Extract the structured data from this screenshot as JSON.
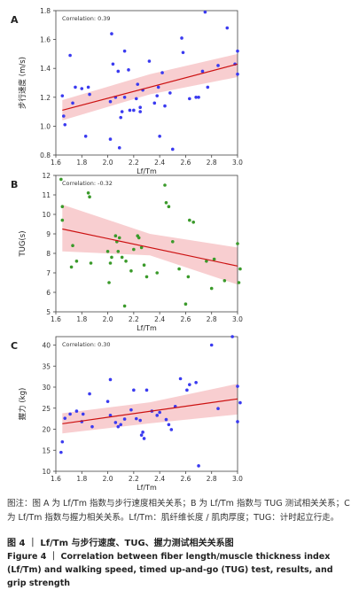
{
  "chart_data": [
    {
      "type": "scatter",
      "panel_label": "A",
      "annotation": "Correlation: 0.39",
      "xlabel": "Lf/Tm",
      "ylabel": "步行速度 (m/s)",
      "xlim": [
        1.6,
        3.0
      ],
      "ylim": [
        0.8,
        1.8
      ],
      "xticks": [
        "1.6",
        "1.8",
        "2.0",
        "2.2",
        "2.4",
        "2.6",
        "2.8",
        "3.0"
      ],
      "yticks": [
        "0.8",
        "1.0",
        "1.2",
        "1.4",
        "1.6",
        "1.8"
      ],
      "point_color": "#3a3af0",
      "regression": {
        "x": [
          1.65,
          3.0
        ],
        "y": [
          1.11,
          1.43
        ]
      },
      "band": {
        "upper": [
          1.18,
          1.36,
          1.5
        ],
        "lower": [
          1.04,
          1.22,
          1.34
        ]
      },
      "points": [
        [
          1.65,
          1.21
        ],
        [
          1.66,
          1.07
        ],
        [
          1.67,
          1.01
        ],
        [
          1.71,
          1.49
        ],
        [
          1.73,
          1.16
        ],
        [
          1.75,
          1.27
        ],
        [
          1.8,
          1.26
        ],
        [
          1.83,
          0.93
        ],
        [
          1.85,
          1.27
        ],
        [
          1.86,
          1.22
        ],
        [
          2.02,
          0.91
        ],
        [
          2.02,
          1.17
        ],
        [
          2.03,
          1.64
        ],
        [
          2.04,
          1.43
        ],
        [
          2.06,
          1.2
        ],
        [
          2.08,
          1.38
        ],
        [
          2.09,
          0.85
        ],
        [
          2.1,
          1.06
        ],
        [
          2.11,
          1.1
        ],
        [
          2.13,
          1.2
        ],
        [
          2.13,
          1.52
        ],
        [
          2.16,
          1.39
        ],
        [
          2.17,
          1.11
        ],
        [
          2.2,
          1.11
        ],
        [
          2.22,
          1.19
        ],
        [
          2.23,
          1.29
        ],
        [
          2.25,
          1.1
        ],
        [
          2.25,
          1.13
        ],
        [
          2.27,
          1.25
        ],
        [
          2.32,
          1.45
        ],
        [
          2.36,
          1.16
        ],
        [
          2.38,
          1.21
        ],
        [
          2.39,
          1.27
        ],
        [
          2.4,
          0.93
        ],
        [
          2.42,
          1.37
        ],
        [
          2.44,
          1.14
        ],
        [
          2.48,
          1.23
        ],
        [
          2.5,
          0.84
        ],
        [
          2.57,
          1.61
        ],
        [
          2.58,
          1.51
        ],
        [
          2.63,
          1.19
        ],
        [
          2.68,
          1.2
        ],
        [
          2.7,
          1.2
        ],
        [
          2.73,
          1.38
        ],
        [
          2.75,
          1.79
        ],
        [
          2.77,
          1.27
        ],
        [
          2.85,
          1.42
        ],
        [
          2.92,
          1.68
        ],
        [
          2.98,
          1.43
        ],
        [
          3.0,
          1.52
        ],
        [
          3.0,
          1.36
        ]
      ]
    },
    {
      "type": "scatter",
      "panel_label": "B",
      "annotation": "Correlation: -0.32",
      "xlabel": "Lf/Tm",
      "ylabel": "TUG(s)",
      "xlim": [
        1.6,
        3.0
      ],
      "ylim": [
        5,
        12
      ],
      "xticks": [
        "1.6",
        "1.8",
        "2.0",
        "2.2",
        "2.4",
        "2.6",
        "2.8",
        "3.0"
      ],
      "yticks": [
        "5",
        "6",
        "7",
        "8",
        "9",
        "10",
        "11",
        "12"
      ],
      "point_color": "#3a9a2a",
      "regression": {
        "x": [
          1.65,
          3.0
        ],
        "y": [
          9.25,
          7.35
        ]
      },
      "band": {
        "upper": [
          10.5,
          9.0,
          8.3
        ],
        "lower": [
          8.1,
          7.9,
          6.4
        ]
      },
      "points": [
        [
          1.64,
          11.8
        ],
        [
          1.65,
          10.4
        ],
        [
          1.65,
          9.7
        ],
        [
          1.72,
          7.3
        ],
        [
          1.73,
          8.4
        ],
        [
          1.76,
          7.6
        ],
        [
          1.85,
          11.1
        ],
        [
          1.86,
          10.9
        ],
        [
          1.87,
          7.5
        ],
        [
          2.0,
          8.1
        ],
        [
          2.01,
          6.5
        ],
        [
          2.02,
          7.5
        ],
        [
          2.03,
          7.8
        ],
        [
          2.06,
          8.9
        ],
        [
          2.07,
          8.6
        ],
        [
          2.08,
          8.1
        ],
        [
          2.09,
          8.8
        ],
        [
          2.11,
          7.8
        ],
        [
          2.13,
          5.3
        ],
        [
          2.14,
          7.6
        ],
        [
          2.18,
          7.1
        ],
        [
          2.2,
          8.2
        ],
        [
          2.23,
          8.9
        ],
        [
          2.24,
          8.8
        ],
        [
          2.26,
          8.3
        ],
        [
          2.28,
          7.4
        ],
        [
          2.3,
          6.8
        ],
        [
          2.38,
          7.0
        ],
        [
          2.44,
          11.5
        ],
        [
          2.45,
          10.6
        ],
        [
          2.47,
          10.4
        ],
        [
          2.5,
          8.6
        ],
        [
          2.55,
          7.2
        ],
        [
          2.6,
          5.4
        ],
        [
          2.62,
          6.8
        ],
        [
          2.63,
          9.7
        ],
        [
          2.66,
          9.6
        ],
        [
          2.76,
          7.6
        ],
        [
          2.8,
          6.2
        ],
        [
          2.82,
          7.7
        ],
        [
          2.9,
          6.6
        ],
        [
          3.0,
          8.5
        ],
        [
          3.01,
          6.5
        ],
        [
          3.02,
          7.2
        ]
      ]
    },
    {
      "type": "scatter",
      "panel_label": "C",
      "annotation": "Correlation: 0.30",
      "xlabel": "Lf/Tm",
      "ylabel": "握力 (kg)",
      "xlim": [
        1.6,
        3.0
      ],
      "ylim": [
        10,
        42
      ],
      "xticks": [
        "1.6",
        "1.8",
        "2.0",
        "2.2",
        "2.4",
        "2.6",
        "2.8",
        "3.0"
      ],
      "yticks": [
        "10",
        "15",
        "20",
        "25",
        "30",
        "35",
        "40"
      ],
      "point_color": "#3a3af0",
      "regression": {
        "x": [
          1.65,
          3.0
        ],
        "y": [
          21.3,
          27.2
        ]
      },
      "band": {
        "upper": [
          23.8,
          26.4,
          30.8
        ],
        "lower": [
          19.0,
          21.4,
          23.5
        ]
      },
      "points": [
        [
          1.64,
          14.5
        ],
        [
          1.65,
          17.0
        ],
        [
          1.67,
          22.6
        ],
        [
          1.71,
          23.6
        ],
        [
          1.76,
          24.3
        ],
        [
          1.8,
          21.8
        ],
        [
          1.81,
          23.6
        ],
        [
          1.86,
          28.4
        ],
        [
          1.88,
          20.6
        ],
        [
          2.0,
          26.6
        ],
        [
          2.02,
          31.8
        ],
        [
          2.02,
          23.3
        ],
        [
          2.06,
          21.6
        ],
        [
          2.08,
          20.6
        ],
        [
          2.1,
          21.1
        ],
        [
          2.13,
          22.4
        ],
        [
          2.18,
          24.6
        ],
        [
          2.2,
          29.3
        ],
        [
          2.22,
          22.5
        ],
        [
          2.25,
          22.1
        ],
        [
          2.26,
          18.6
        ],
        [
          2.27,
          19.3
        ],
        [
          2.28,
          17.8
        ],
        [
          2.3,
          29.3
        ],
        [
          2.34,
          24.3
        ],
        [
          2.38,
          23.3
        ],
        [
          2.4,
          24.0
        ],
        [
          2.45,
          22.3
        ],
        [
          2.47,
          21.1
        ],
        [
          2.49,
          19.9
        ],
        [
          2.52,
          25.4
        ],
        [
          2.56,
          32.0
        ],
        [
          2.61,
          29.3
        ],
        [
          2.63,
          30.6
        ],
        [
          2.68,
          31.1
        ],
        [
          2.7,
          11.3
        ],
        [
          2.8,
          40.0
        ],
        [
          2.85,
          24.9
        ],
        [
          2.96,
          42.0
        ],
        [
          3.0,
          21.8
        ],
        [
          3.0,
          30.2
        ],
        [
          3.02,
          26.3
        ]
      ]
    }
  ],
  "caption": {
    "note": "图注：图 A 为 Lf/Tm 指数与步行速度相关关系；B 为 Lf/Tm 指数与 TUG 测试相关关系；C 为 Lf/Tm 指数与握力相关关系。Lf/Tm：肌纤维长度 / 肌肉厚度；TUG：计时起立行走。",
    "title_cn": "图 4 ｜ Lf/Tm 与步行速度、TUG、握力测试相关关系图",
    "title_en": "Figure 4 ｜ Correlation between fiber length/muscle thickness index (Lf/Tm) and walking speed, timed up-and-go (TUG) test, results, and grip strength"
  },
  "colors": {
    "regression_line": "#cc1111",
    "confidence_band": "#f7c5c8"
  }
}
